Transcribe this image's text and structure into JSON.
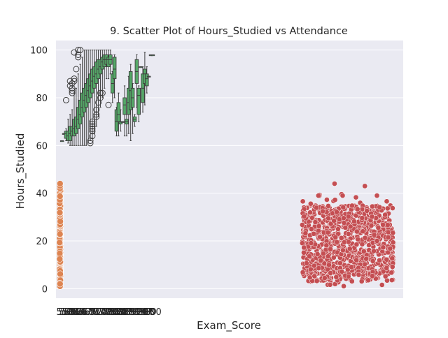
{
  "chart_data": {
    "type": "scatter",
    "title": "9. Scatter Plot of Hours_Studied vs Attendance",
    "xlabel": "Exam_Score",
    "ylabel": "Hours_Studied",
    "ylim": [
      -4,
      104
    ],
    "y_ticks": [
      "0",
      "20",
      "40",
      "60",
      "80",
      "100"
    ],
    "x_tick_labels": [
      "55",
      "56",
      "57",
      "58",
      "59",
      "60",
      "61",
      "62",
      "63",
      "64",
      "65",
      "66",
      "67",
      "68",
      "69",
      "70",
      "71",
      "72",
      "73",
      "74",
      "75",
      "76",
      "77",
      "78",
      "79",
      "80",
      "81",
      "82",
      "83",
      "84",
      "85",
      "86",
      "87",
      "88",
      "89",
      "90",
      "91",
      "92",
      "93",
      "94",
      "95",
      "96",
      "97",
      "98",
      "99",
      "100"
    ],
    "grid": true,
    "legend": "none",
    "colors": {
      "background": "#eaeaf2",
      "grid": "#ffffff",
      "box_series": "#55a868",
      "strip_series": "#dd8452",
      "scatter_series": "#c44e52"
    },
    "series": [
      {
        "type": "box",
        "categories": [
          "55",
          "56",
          "57",
          "58",
          "59",
          "60",
          "61",
          "62",
          "63",
          "64",
          "65",
          "66",
          "67",
          "68",
          "69",
          "70",
          "71",
          "72",
          "73",
          "74",
          "75",
          "76",
          "77",
          "78",
          "79",
          "80",
          "81",
          "82",
          "83",
          "84",
          "85",
          "86",
          "87",
          "88",
          "89",
          "90",
          "91",
          "92",
          "93",
          "94",
          "95",
          "96",
          "97",
          "98",
          "99",
          "100"
        ],
        "boxes": [
          {
            "q1": 62,
            "med": 62,
            "q3": 62,
            "lo": 62,
            "hi": 62,
            "out": []
          },
          {
            "q1": 65,
            "med": 65,
            "q3": 65,
            "lo": 65,
            "hi": 65,
            "out": []
          },
          {
            "q1": 63,
            "med": 65,
            "q3": 66,
            "lo": 62,
            "hi": 67,
            "out": [
              79
            ]
          },
          {
            "q1": 62,
            "med": 64,
            "q3": 66,
            "lo": 61,
            "hi": 71,
            "out": []
          },
          {
            "q1": 62,
            "med": 65,
            "q3": 68,
            "lo": 60,
            "hi": 73,
            "out": [
              85,
              87
            ]
          },
          {
            "q1": 64,
            "med": 66,
            "q3": 68,
            "lo": 60,
            "hi": 75,
            "out": [
              82,
              83,
              84,
              86
            ]
          },
          {
            "q1": 64,
            "med": 67,
            "q3": 71,
            "lo": 60,
            "hi": 82,
            "out": [
              87,
              88,
              99
            ]
          },
          {
            "q1": 65,
            "med": 68,
            "q3": 72,
            "lo": 60,
            "hi": 84,
            "out": [
              92
            ]
          },
          {
            "q1": 67,
            "med": 71,
            "q3": 76,
            "lo": 60,
            "hi": 90,
            "out": [
              97,
              98,
              100
            ]
          },
          {
            "q1": 69,
            "med": 73,
            "q3": 79,
            "lo": 60,
            "hi": 94,
            "out": [
              100
            ]
          },
          {
            "q1": 72,
            "med": 76,
            "q3": 82,
            "lo": 60,
            "hi": 97,
            "out": []
          },
          {
            "q1": 74,
            "med": 79,
            "q3": 84,
            "lo": 60,
            "hi": 100,
            "out": []
          },
          {
            "q1": 76,
            "med": 81,
            "q3": 86,
            "lo": 60,
            "hi": 100,
            "out": []
          },
          {
            "q1": 78,
            "med": 83,
            "q3": 88,
            "lo": 61,
            "hi": 100,
            "out": []
          },
          {
            "q1": 80,
            "med": 85,
            "q3": 90,
            "lo": 62,
            "hi": 100,
            "out": [
              61,
              62
            ]
          },
          {
            "q1": 82,
            "med": 87,
            "q3": 92,
            "lo": 63,
            "hi": 100,
            "out": [
              64,
              66,
              67,
              68,
              69,
              70
            ]
          },
          {
            "q1": 84,
            "med": 89,
            "q3": 93,
            "lo": 65,
            "hi": 100,
            "out": []
          },
          {
            "q1": 86,
            "med": 90,
            "q3": 95,
            "lo": 68,
            "hi": 100,
            "out": [
              72,
              73,
              75
            ]
          },
          {
            "q1": 88,
            "med": 92,
            "q3": 96,
            "lo": 72,
            "hi": 100,
            "out": [
              78
            ]
          },
          {
            "q1": 90,
            "med": 93,
            "q3": 96,
            "lo": 76,
            "hi": 100,
            "out": [
              80,
              82
            ]
          },
          {
            "q1": 92,
            "med": 95,
            "q3": 97,
            "lo": 80,
            "hi": 100,
            "out": [
              82
            ]
          },
          {
            "q1": 93,
            "med": 96,
            "q3": 98,
            "lo": 84,
            "hi": 100,
            "out": []
          },
          {
            "q1": 94,
            "med": 96,
            "q3": 98,
            "lo": 88,
            "hi": 100,
            "out": []
          },
          {
            "q1": 93,
            "med": 96,
            "q3": 97,
            "lo": 88,
            "hi": 100,
            "out": [
              77
            ]
          },
          {
            "q1": 94,
            "med": 96,
            "q3": 98,
            "lo": 90,
            "hi": 100,
            "out": []
          },
          {
            "q1": 82,
            "med": 86,
            "q3": 90,
            "lo": 78,
            "hi": 91,
            "out": []
          },
          {
            "q1": 88,
            "med": 92,
            "q3": 97,
            "lo": 80,
            "hi": 98,
            "out": []
          },
          {
            "q1": 66,
            "med": 70,
            "q3": 75,
            "lo": 64,
            "hi": 76,
            "out": []
          },
          {
            "q1": 70,
            "med": 73,
            "q3": 78,
            "lo": 64,
            "hi": 82,
            "out": []
          },
          {
            "q1": 69,
            "med": 70,
            "q3": 70,
            "lo": 66,
            "hi": 75,
            "out": []
          },
          {
            "q1": 70,
            "med": 70,
            "q3": 70,
            "lo": 70,
            "hi": 70,
            "out": []
          },
          {
            "q1": 73,
            "med": 77,
            "q3": 80,
            "lo": 64,
            "hi": 85,
            "out": []
          },
          {
            "q1": 69,
            "med": 70,
            "q3": 71,
            "lo": 64,
            "hi": 73,
            "out": []
          },
          {
            "q1": 73,
            "med": 78,
            "q3": 84,
            "lo": 65,
            "hi": 89,
            "out": []
          },
          {
            "q1": 75,
            "med": 83,
            "q3": 91,
            "lo": 62,
            "hi": 94,
            "out": []
          },
          {
            "q1": 76,
            "med": 80,
            "q3": 84,
            "lo": 65,
            "hi": 86,
            "out": []
          },
          {
            "q1": 70,
            "med": 71,
            "q3": 72,
            "lo": 68,
            "hi": 73,
            "out": []
          },
          {
            "q1": 86,
            "med": 91,
            "q3": 96,
            "lo": 76,
            "hi": 98,
            "out": []
          },
          {
            "q1": 73,
            "med": 81,
            "q3": 84,
            "lo": 70,
            "hi": 85,
            "out": []
          },
          {
            "q1": 93,
            "med": 93,
            "q3": 93,
            "lo": 93,
            "hi": 93,
            "out": []
          },
          {
            "q1": 78,
            "med": 84,
            "q3": 90,
            "lo": 74,
            "hi": 93,
            "out": []
          },
          {
            "q1": 86,
            "med": 90,
            "q3": 92,
            "lo": 77,
            "hi": 99,
            "out": []
          },
          {
            "q1": 85,
            "med": 88,
            "q3": 90,
            "lo": 82,
            "hi": 93,
            "out": []
          },
          {
            "q1": 89,
            "med": 89,
            "q3": 89,
            "lo": 89,
            "hi": 89,
            "out": []
          },
          {
            "q1": 98,
            "med": 98,
            "q3": 98,
            "lo": 98,
            "hi": 98,
            "out": []
          },
          {
            "q1": 98,
            "med": 98,
            "q3": 98,
            "lo": 98,
            "hi": 98,
            "out": []
          }
        ]
      },
      {
        "type": "strip",
        "x_position": 0,
        "y_min": 1,
        "y_max": 44,
        "dense_min": 2,
        "dense_max": 38
      },
      {
        "type": "scatter",
        "x_range": [
          120,
          165
        ],
        "y_min": 1,
        "y_max": 44,
        "dense_min": 3,
        "dense_max": 35
      }
    ]
  }
}
